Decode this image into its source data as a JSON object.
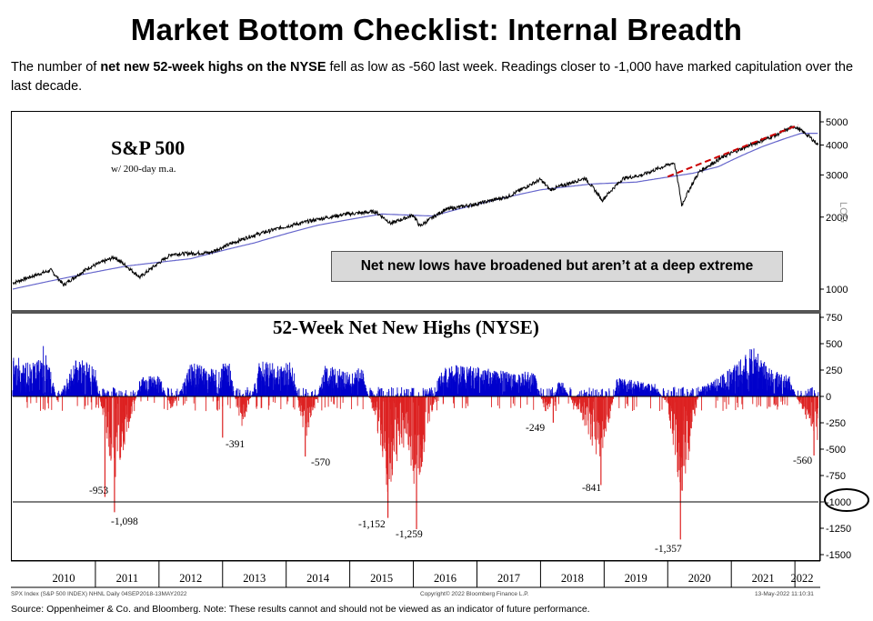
{
  "title": "Market Bottom Checklist: Internal Breadth",
  "subtitle": {
    "part1": "The number of ",
    "bold": "net new 52-week highs on the NYSE",
    "part2": " fell as low as -560 last week.  Readings closer to -1,000 have marked capitulation over the last decade."
  },
  "spx_panel": {
    "title": "S&P 500",
    "subtitle": "w/ 200-day m.a.",
    "axis_label": "LOG",
    "callout": "Net new lows have broadened but aren’t at a deep extreme"
  },
  "nnh_panel": {
    "title": "52-Week Net New Highs (NYSE)"
  },
  "footer": {
    "left": "SPX Index (S&P 500 INDEX) NHNL  Daily 04SEP2018-13MAY2022",
    "mid": "Copyright© 2022 Bloomberg Finance L.P.",
    "right": "13-May-2022 11:10:31"
  },
  "source": "Source: Oppenheimer & Co. and Bloomberg.  Note: These results cannot and should not be viewed as an indicator of future performance.",
  "colors": {
    "spx_line": "#000000",
    "ma_line": "#6666cc",
    "positive": "#0000cc",
    "negative": "#dd2222",
    "trend": "#cc0000"
  },
  "chart_data": [
    {
      "type": "line",
      "title": "S&P 500",
      "scale": "log",
      "y_ticks": [
        "5000",
        "4000",
        "3000",
        "2000",
        "1000"
      ],
      "y_tick_values": [
        5000,
        4000,
        3000,
        2000,
        1000
      ],
      "x_labels": [
        "2010",
        "2011",
        "2012",
        "2013",
        "2014",
        "2015",
        "2016",
        "2017",
        "2018",
        "2019",
        "2020",
        "2021",
        "2022"
      ],
      "series": [
        {
          "role": "price",
          "x": [
            2009.7,
            2010.3,
            2010.5,
            2010.9,
            2011.3,
            2011.7,
            2012.2,
            2012.8,
            2013.4,
            2013.9,
            2014.5,
            2014.9,
            2015.4,
            2015.65,
            2016.0,
            2016.1,
            2016.5,
            2017.0,
            2017.5,
            2018.0,
            2018.15,
            2018.7,
            2018.97,
            2019.3,
            2019.6,
            2020.1,
            2020.22,
            2020.5,
            2020.9,
            2021.3,
            2021.7,
            2021.99,
            2022.2,
            2022.37
          ],
          "values": [
            1060,
            1200,
            1040,
            1230,
            1360,
            1120,
            1400,
            1420,
            1650,
            1800,
            1960,
            2050,
            2110,
            1880,
            2040,
            1830,
            2150,
            2270,
            2440,
            2870,
            2600,
            2910,
            2350,
            2900,
            3000,
            3380,
            2240,
            3100,
            3600,
            4000,
            4400,
            4790,
            4400,
            4000
          ]
        },
        {
          "role": "200-day m.a.",
          "x": [
            2009.7,
            2010.5,
            2011.5,
            2012.5,
            2013.5,
            2014.5,
            2015.5,
            2016.3,
            2017.0,
            2018.0,
            2018.8,
            2019.5,
            2020.4,
            2020.8,
            2021.5,
            2022.1,
            2022.37
          ],
          "values": [
            1000,
            1110,
            1250,
            1340,
            1560,
            1850,
            2060,
            2020,
            2260,
            2600,
            2750,
            2800,
            3050,
            3250,
            3950,
            4480,
            4480
          ]
        },
        {
          "role": "trend",
          "x": [
            2020.0,
            2022.05
          ],
          "values": [
            2950,
            4850
          ]
        }
      ]
    },
    {
      "type": "bar",
      "title": "52-Week Net New Highs (NYSE)",
      "y_ticks": [
        "750",
        "500",
        "250",
        "0",
        "-250",
        "-500",
        "-750",
        "-1000",
        "-1250",
        "-1500"
      ],
      "y_tick_values": [
        750,
        500,
        250,
        0,
        -250,
        -500,
        -750,
        -1000,
        -1250,
        -1500
      ],
      "ylim": [
        -1600,
        800
      ],
      "x_labels": [
        "2010",
        "2011",
        "2012",
        "2013",
        "2014",
        "2015",
        "2016",
        "2017",
        "2018",
        "2019",
        "2020",
        "2021",
        "2022"
      ],
      "reference_line": -1000,
      "annotations": [
        {
          "label": "-953",
          "x": 2011.15,
          "value": -953
        },
        {
          "label": "-1,098",
          "x": 2011.3,
          "value": -1098
        },
        {
          "label": "-391",
          "x": 2013.0,
          "value": -391
        },
        {
          "label": "-570",
          "x": 2014.3,
          "value": -570
        },
        {
          "label": "-1,152",
          "x": 2015.6,
          "value": -1152
        },
        {
          "label": "-1,259",
          "x": 2016.05,
          "value": -1259
        },
        {
          "label": "-249",
          "x": 2018.2,
          "value": -249
        },
        {
          "label": "-841",
          "x": 2018.95,
          "value": -841
        },
        {
          "label": "-1,357",
          "x": 2020.2,
          "value": -1357
        },
        {
          "label": "-560",
          "x": 2022.3,
          "value": -560
        }
      ],
      "envelope": {
        "x": [
          2009.7,
          2010.0,
          2010.2,
          2010.4,
          2010.7,
          2011.0,
          2011.3,
          2011.7,
          2012.0,
          2012.2,
          2012.5,
          2012.8,
          2013.1,
          2013.3,
          2013.6,
          2013.9,
          2014.1,
          2014.3,
          2014.6,
          2014.9,
          2015.2,
          2015.4,
          2015.6,
          2015.9,
          2016.05,
          2016.4,
          2016.7,
          2017.0,
          2017.3,
          2017.6,
          2017.9,
          2018.1,
          2018.3,
          2018.6,
          2018.95,
          2019.2,
          2019.5,
          2019.8,
          2020.0,
          2020.2,
          2020.5,
          2020.8,
          2021.1,
          2021.35,
          2021.6,
          2021.9,
          2022.1,
          2022.37
        ],
        "values": [
          400,
          300,
          520,
          -50,
          380,
          280,
          -1098,
          180,
          220,
          -150,
          330,
          260,
          350,
          -391,
          380,
          280,
          350,
          -570,
          300,
          250,
          270,
          -300,
          -1152,
          -500,
          -1259,
          250,
          310,
          280,
          260,
          220,
          250,
          -249,
          200,
          -200,
          -841,
          180,
          150,
          120,
          -100,
          -1357,
          80,
          180,
          320,
          500,
          270,
          220,
          -150,
          -560
        ]
      }
    }
  ]
}
